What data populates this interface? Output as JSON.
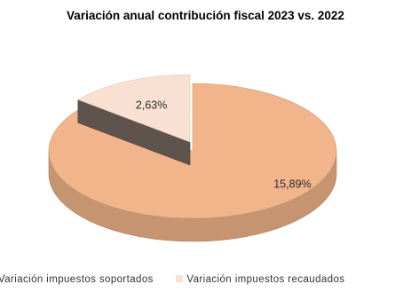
{
  "chart_data": {
    "type": "pie",
    "title": "Variación anual contribución fiscal 2023 vs. 2022",
    "categories": [
      "Variación impuestos soportados",
      "Variación impuestos recaudados"
    ],
    "values": [
      15.89,
      2.63
    ],
    "data_labels": [
      "15,89%",
      "2,63%"
    ],
    "colors": [
      "#f2b48a",
      "#f8e1d2"
    ],
    "three_d": true,
    "exploded_slice": "Variación impuestos recaudados",
    "legend_position": "bottom"
  }
}
